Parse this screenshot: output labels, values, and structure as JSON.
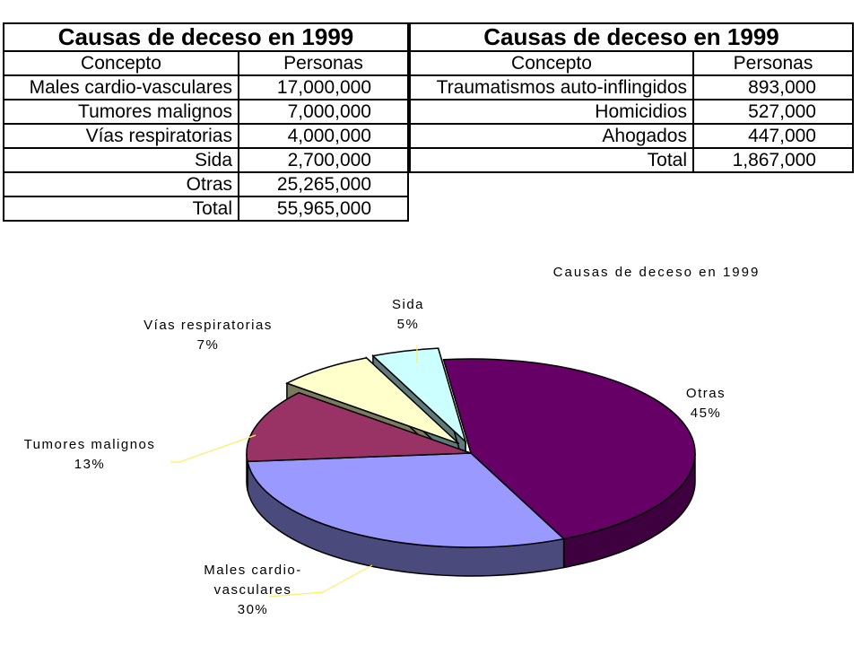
{
  "table1": {
    "title": "Causas de deceso en 1999",
    "headers": [
      "Concepto",
      "Personas"
    ],
    "rows": [
      {
        "concepto": "Males cardio-vasculares",
        "personas": "17,000,000"
      },
      {
        "concepto": "Tumores malignos",
        "personas": "7,000,000"
      },
      {
        "concepto": "Vías respiratorias",
        "personas": "4,000,000"
      },
      {
        "concepto": "Sida",
        "personas": "2,700,000"
      },
      {
        "concepto": "Otras",
        "personas": "25,265,000"
      },
      {
        "concepto": "Total",
        "personas": "55,965,000"
      }
    ]
  },
  "table2": {
    "title": "Causas de deceso en 1999",
    "headers": [
      "Concepto",
      "Personas"
    ],
    "rows": [
      {
        "concepto": "Traumatismos auto-inflingidos",
        "personas": "893,000"
      },
      {
        "concepto": "Homicidios",
        "personas": "527,000"
      },
      {
        "concepto": "Ahogados",
        "personas": "447,000"
      },
      {
        "concepto": "Total",
        "personas": "1,867,000"
      }
    ]
  },
  "chart_data": {
    "type": "pie",
    "title": "Causas de deceso en 1999",
    "slices": [
      {
        "label": "Otras",
        "percent_label": "45%",
        "value": 25265000,
        "color": "#660066",
        "side": "#3f003f"
      },
      {
        "label": "Males cardio-vasculares",
        "label_lines": [
          "Males cardio-",
          "vasculares"
        ],
        "percent_label": "30%",
        "value": 17000000,
        "color": "#9999ff",
        "side": "#4a4a7c"
      },
      {
        "label": "Tumores malignos",
        "percent_label": "13%",
        "value": 7000000,
        "color": "#993366",
        "side": "#5c1f3d"
      },
      {
        "label": "Vías respiratorias",
        "percent_label": "7%",
        "value": 4000000,
        "color": "#ffffcc",
        "side": "#7a7a5e"
      },
      {
        "label": "Sida",
        "percent_label": "5%",
        "value": 2700000,
        "color": "#ccffff",
        "side": "#5f7a7a"
      }
    ],
    "exploded": [
      "Vías respiratorias",
      "Sida"
    ],
    "style": "3d"
  }
}
